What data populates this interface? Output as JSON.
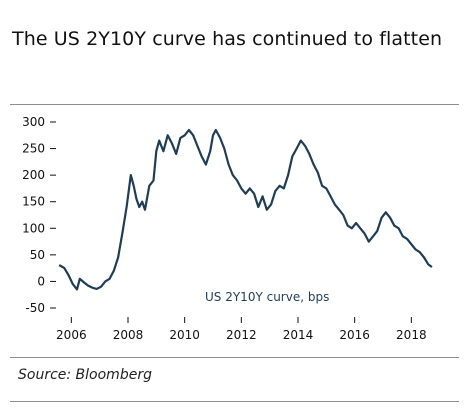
{
  "title": "The US 2Y10Y curve has continued to flatten",
  "source": "Source: Bloomberg",
  "colors": {
    "line": "#1e3d59",
    "text": "#111111",
    "rule": "#8e8e8e"
  },
  "chart_data": {
    "type": "line",
    "title": "The US 2Y10Y curve has continued to flatten",
    "xlabel": "",
    "ylabel": "",
    "legend": "US 2Y10Y curve, bps",
    "xlim": [
      2005.6,
      2018.8
    ],
    "ylim": [
      -50,
      300
    ],
    "y_ticks": [
      "300",
      "250",
      "200",
      "150",
      "100",
      "50",
      "0",
      "-50"
    ],
    "x_ticks": [
      "2006",
      "2008",
      "2010",
      "2012",
      "2014",
      "2016",
      "2018"
    ],
    "grid": false,
    "series": [
      {
        "name": "US 2Y10Y curve, bps",
        "x": [
          2005.6,
          2005.75,
          2005.9,
          2006.05,
          2006.2,
          2006.3,
          2006.45,
          2006.6,
          2006.75,
          2006.9,
          2007.05,
          2007.2,
          2007.35,
          2007.5,
          2007.65,
          2007.8,
          2007.95,
          2008.1,
          2008.2,
          2008.3,
          2008.4,
          2008.5,
          2008.6,
          2008.75,
          2008.9,
          2009.0,
          2009.1,
          2009.25,
          2009.4,
          2009.55,
          2009.7,
          2009.85,
          2010.0,
          2010.15,
          2010.3,
          2010.45,
          2010.6,
          2010.75,
          2010.9,
          2011.0,
          2011.1,
          2011.25,
          2011.4,
          2011.55,
          2011.7,
          2011.85,
          2012.0,
          2012.15,
          2012.3,
          2012.45,
          2012.6,
          2012.75,
          2012.9,
          2013.05,
          2013.2,
          2013.35,
          2013.5,
          2013.65,
          2013.8,
          2013.95,
          2014.1,
          2014.25,
          2014.4,
          2014.55,
          2014.7,
          2014.85,
          2015.0,
          2015.15,
          2015.3,
          2015.45,
          2015.6,
          2015.75,
          2015.9,
          2016.05,
          2016.2,
          2016.35,
          2016.5,
          2016.65,
          2016.8,
          2016.95,
          2017.1,
          2017.25,
          2017.4,
          2017.55,
          2017.7,
          2017.85,
          2018.0,
          2018.15,
          2018.3,
          2018.45,
          2018.6,
          2018.7
        ],
        "values": [
          30,
          25,
          12,
          -5,
          -15,
          5,
          -2,
          -8,
          -12,
          -14,
          -10,
          0,
          5,
          20,
          45,
          90,
          140,
          200,
          180,
          155,
          140,
          150,
          135,
          180,
          190,
          245,
          265,
          245,
          275,
          260,
          240,
          270,
          275,
          285,
          275,
          255,
          235,
          220,
          245,
          275,
          285,
          270,
          250,
          220,
          200,
          190,
          175,
          165,
          175,
          165,
          140,
          160,
          135,
          145,
          170,
          180,
          175,
          200,
          235,
          250,
          265,
          255,
          240,
          220,
          205,
          180,
          175,
          160,
          145,
          135,
          125,
          105,
          100,
          110,
          100,
          90,
          75,
          85,
          95,
          120,
          130,
          120,
          105,
          100,
          85,
          80,
          70,
          60,
          55,
          45,
          32,
          28
        ]
      }
    ]
  }
}
